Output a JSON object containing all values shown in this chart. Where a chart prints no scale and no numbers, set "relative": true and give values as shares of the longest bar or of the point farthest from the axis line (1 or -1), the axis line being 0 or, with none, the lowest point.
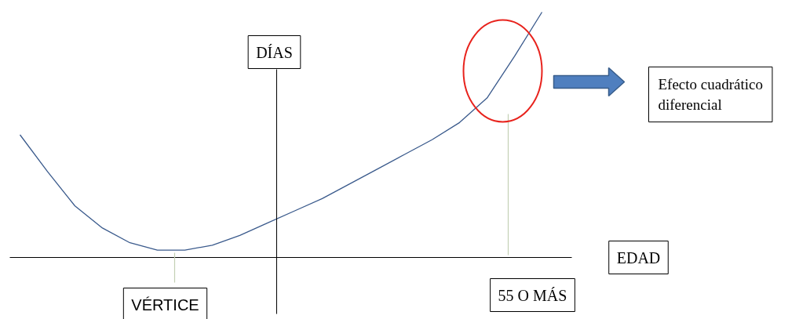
{
  "chart_data": {
    "type": "line",
    "relative": true,
    "categories": [
      null,
      null,
      null,
      null,
      null,
      null,
      null,
      null,
      null,
      null,
      null,
      null,
      null,
      null,
      null,
      null,
      null,
      null,
      null,
      null
    ],
    "values": [
      0.5,
      0.35,
      0.21,
      0.12,
      0.06,
      0.03,
      0.03,
      0.05,
      0.09,
      0.14,
      0.19,
      0.24,
      0.3,
      0.36,
      0.42,
      0.48,
      0.55,
      0.65,
      0.82,
      1.0
    ],
    "color": "#3a5a8c",
    "xlabel": "EDAD",
    "ylabel": "DÍAS",
    "annotations": [
      "VÉRTICE",
      "55 O MÁS",
      "Efecto cuadrático diferencial"
    ]
  }
}
